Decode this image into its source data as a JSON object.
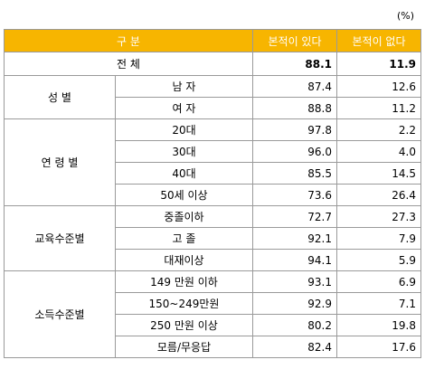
{
  "unit": "(%)",
  "header": {
    "category": "구 분",
    "col_a": "본적이 있다",
    "col_b": "본적이 없다"
  },
  "total": {
    "label": "전 체",
    "a": "88.1",
    "b": "11.9"
  },
  "groups": [
    {
      "label": "성 별",
      "rows": [
        {
          "label": "남 자",
          "a": "87.4",
          "b": "12.6"
        },
        {
          "label": "여 자",
          "a": "88.8",
          "b": "11.2"
        }
      ]
    },
    {
      "label": "연 령 별",
      "rows": [
        {
          "label": "20대",
          "a": "97.8",
          "b": "2.2"
        },
        {
          "label": "30대",
          "a": "96.0",
          "b": "4.0"
        },
        {
          "label": "40대",
          "a": "85.5",
          "b": "14.5"
        },
        {
          "label": "50세 이상",
          "a": "73.6",
          "b": "26.4"
        }
      ]
    },
    {
      "label": "교육수준별",
      "rows": [
        {
          "label": "중졸이하",
          "a": "72.7",
          "b": "27.3"
        },
        {
          "label": "고 졸",
          "a": "92.1",
          "b": "7.9"
        },
        {
          "label": "대재이상",
          "a": "94.1",
          "b": "5.9"
        }
      ]
    },
    {
      "label": "소득수준별",
      "rows": [
        {
          "label": "149 만원 이하",
          "a": "93.1",
          "b": "6.9"
        },
        {
          "label": "150~249만원",
          "a": "92.9",
          "b": "7.1"
        },
        {
          "label": "250 만원 이상",
          "a": "80.2",
          "b": "19.8"
        },
        {
          "label": "모름/무응답",
          "a": "82.4",
          "b": "17.6"
        }
      ]
    }
  ]
}
